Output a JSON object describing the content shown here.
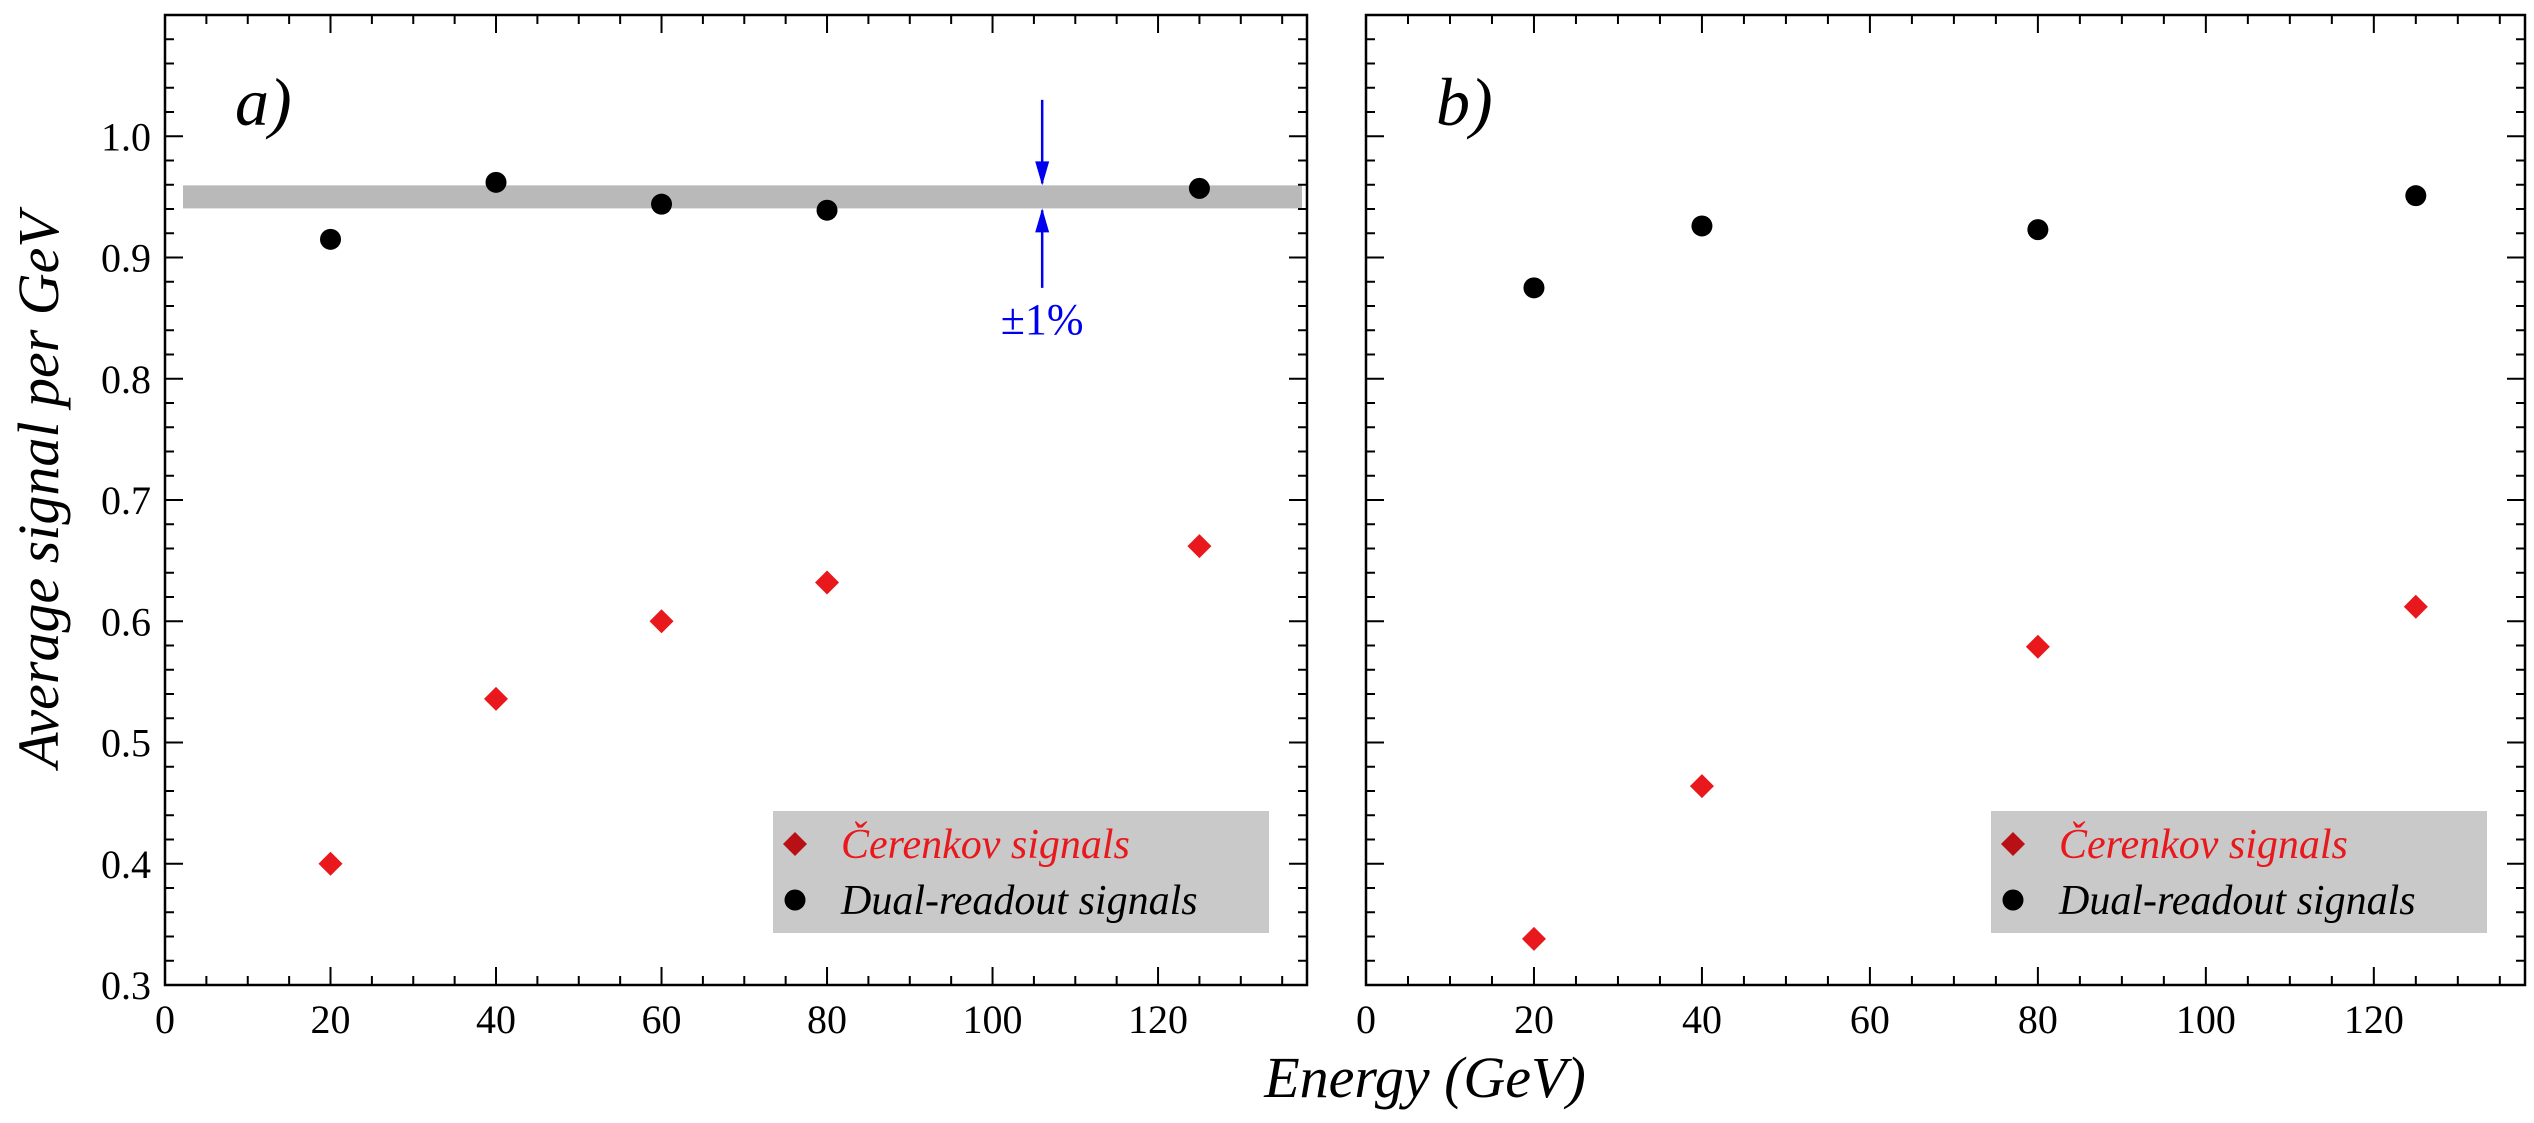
{
  "chart_data": [
    {
      "type": "scatter",
      "panel_label": "a)",
      "x_ticks": [
        "0",
        "20",
        "40",
        "60",
        "80",
        "100",
        "120"
      ],
      "y_ticks": [
        "0.3",
        "0.4",
        "0.5",
        "0.6",
        "0.7",
        "0.8",
        "0.9",
        "1.0"
      ],
      "xlim": [
        0,
        138
      ],
      "ylim": [
        0.3,
        1.1
      ],
      "legend_position": "bottom-right",
      "band": {
        "y_center": 0.95,
        "half_width": 0.0095,
        "color": "#b9b9b9"
      },
      "annotation": {
        "text": "±1%",
        "x": 106,
        "color": "#0000ee"
      },
      "series": [
        {
          "name": "Čerenkov signals",
          "marker": "diamond",
          "color": "#e8181c",
          "points": [
            [
              20,
              0.4
            ],
            [
              40,
              0.536
            ],
            [
              60,
              0.6
            ],
            [
              80,
              0.632
            ],
            [
              125,
              0.662
            ]
          ]
        },
        {
          "name": "Dual-readout signals",
          "marker": "circle",
          "color": "#000000",
          "points": [
            [
              20,
              0.915
            ],
            [
              40,
              0.962
            ],
            [
              60,
              0.944
            ],
            [
              80,
              0.939
            ],
            [
              125,
              0.957
            ]
          ]
        }
      ]
    },
    {
      "type": "scatter",
      "panel_label": "b)",
      "x_ticks": [
        "0",
        "20",
        "40",
        "60",
        "80",
        "100",
        "120"
      ],
      "xlim": [
        0,
        138
      ],
      "ylim": [
        0.3,
        1.1
      ],
      "legend_position": "bottom-right",
      "series": [
        {
          "name": "Čerenkov signals",
          "marker": "diamond",
          "color": "#e8181c",
          "points": [
            [
              20,
              0.338
            ],
            [
              40,
              0.464
            ],
            [
              80,
              0.579
            ],
            [
              125,
              0.612
            ]
          ]
        },
        {
          "name": "Dual-readout signals",
          "marker": "circle",
          "color": "#000000",
          "points": [
            [
              20,
              0.875
            ],
            [
              40,
              0.926
            ],
            [
              80,
              0.923
            ],
            [
              125,
              0.951
            ]
          ]
        }
      ]
    }
  ],
  "shared": {
    "xlabel": "Energy (GeV)",
    "ylabel": "Average signal per GeV"
  }
}
